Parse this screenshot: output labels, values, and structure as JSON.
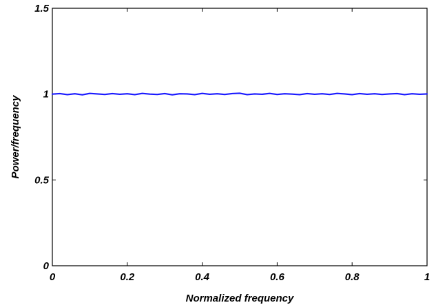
{
  "chart_data": {
    "type": "line",
    "title": "",
    "xlabel": "Normalized frequency",
    "ylabel": "Power/frequency",
    "xlim": [
      0,
      1
    ],
    "ylim": [
      0,
      1.5
    ],
    "xticks": [
      0,
      0.2,
      0.4,
      0.6,
      0.8,
      1
    ],
    "xtick_labels": [
      "0",
      "0.2",
      "0.4",
      "0.6",
      "0.8",
      "1"
    ],
    "yticks": [
      0,
      0.5,
      1,
      1.5
    ],
    "ytick_labels": [
      "0",
      "0.5",
      "1",
      "1.5"
    ],
    "grid": false,
    "legend": "none",
    "series": [
      {
        "color": "#1a1aff",
        "x": [
          0,
          0.02,
          0.04,
          0.06,
          0.08,
          0.1,
          0.12,
          0.14,
          0.16,
          0.18,
          0.2,
          0.22,
          0.24,
          0.26,
          0.28,
          0.3,
          0.32,
          0.34,
          0.36,
          0.38,
          0.4,
          0.42,
          0.44,
          0.46,
          0.48,
          0.5,
          0.52,
          0.54,
          0.56,
          0.58,
          0.6,
          0.62,
          0.64,
          0.66,
          0.68,
          0.7,
          0.72,
          0.74,
          0.76,
          0.78,
          0.8,
          0.82,
          0.84,
          0.86,
          0.88,
          0.9,
          0.92,
          0.94,
          0.96,
          0.98,
          1
        ],
        "y": [
          1.0,
          1.003,
          0.997,
          1.002,
          0.996,
          1.004,
          1.001,
          0.998,
          1.003,
          0.999,
          1.002,
          0.997,
          1.004,
          1.0,
          0.998,
          1.003,
          0.996,
          1.002,
          1.001,
          0.997,
          1.004,
          0.999,
          1.002,
          0.998,
          1.003,
          1.005,
          0.997,
          1.001,
          0.999,
          1.004,
          0.998,
          1.002,
          1.0,
          0.997,
          1.003,
          0.999,
          1.002,
          0.998,
          1.004,
          1.001,
          0.997,
          1.003,
          0.999,
          1.002,
          0.998,
          1.001,
          1.003,
          0.997,
          1.002,
          0.999,
          1.001
        ]
      }
    ]
  }
}
